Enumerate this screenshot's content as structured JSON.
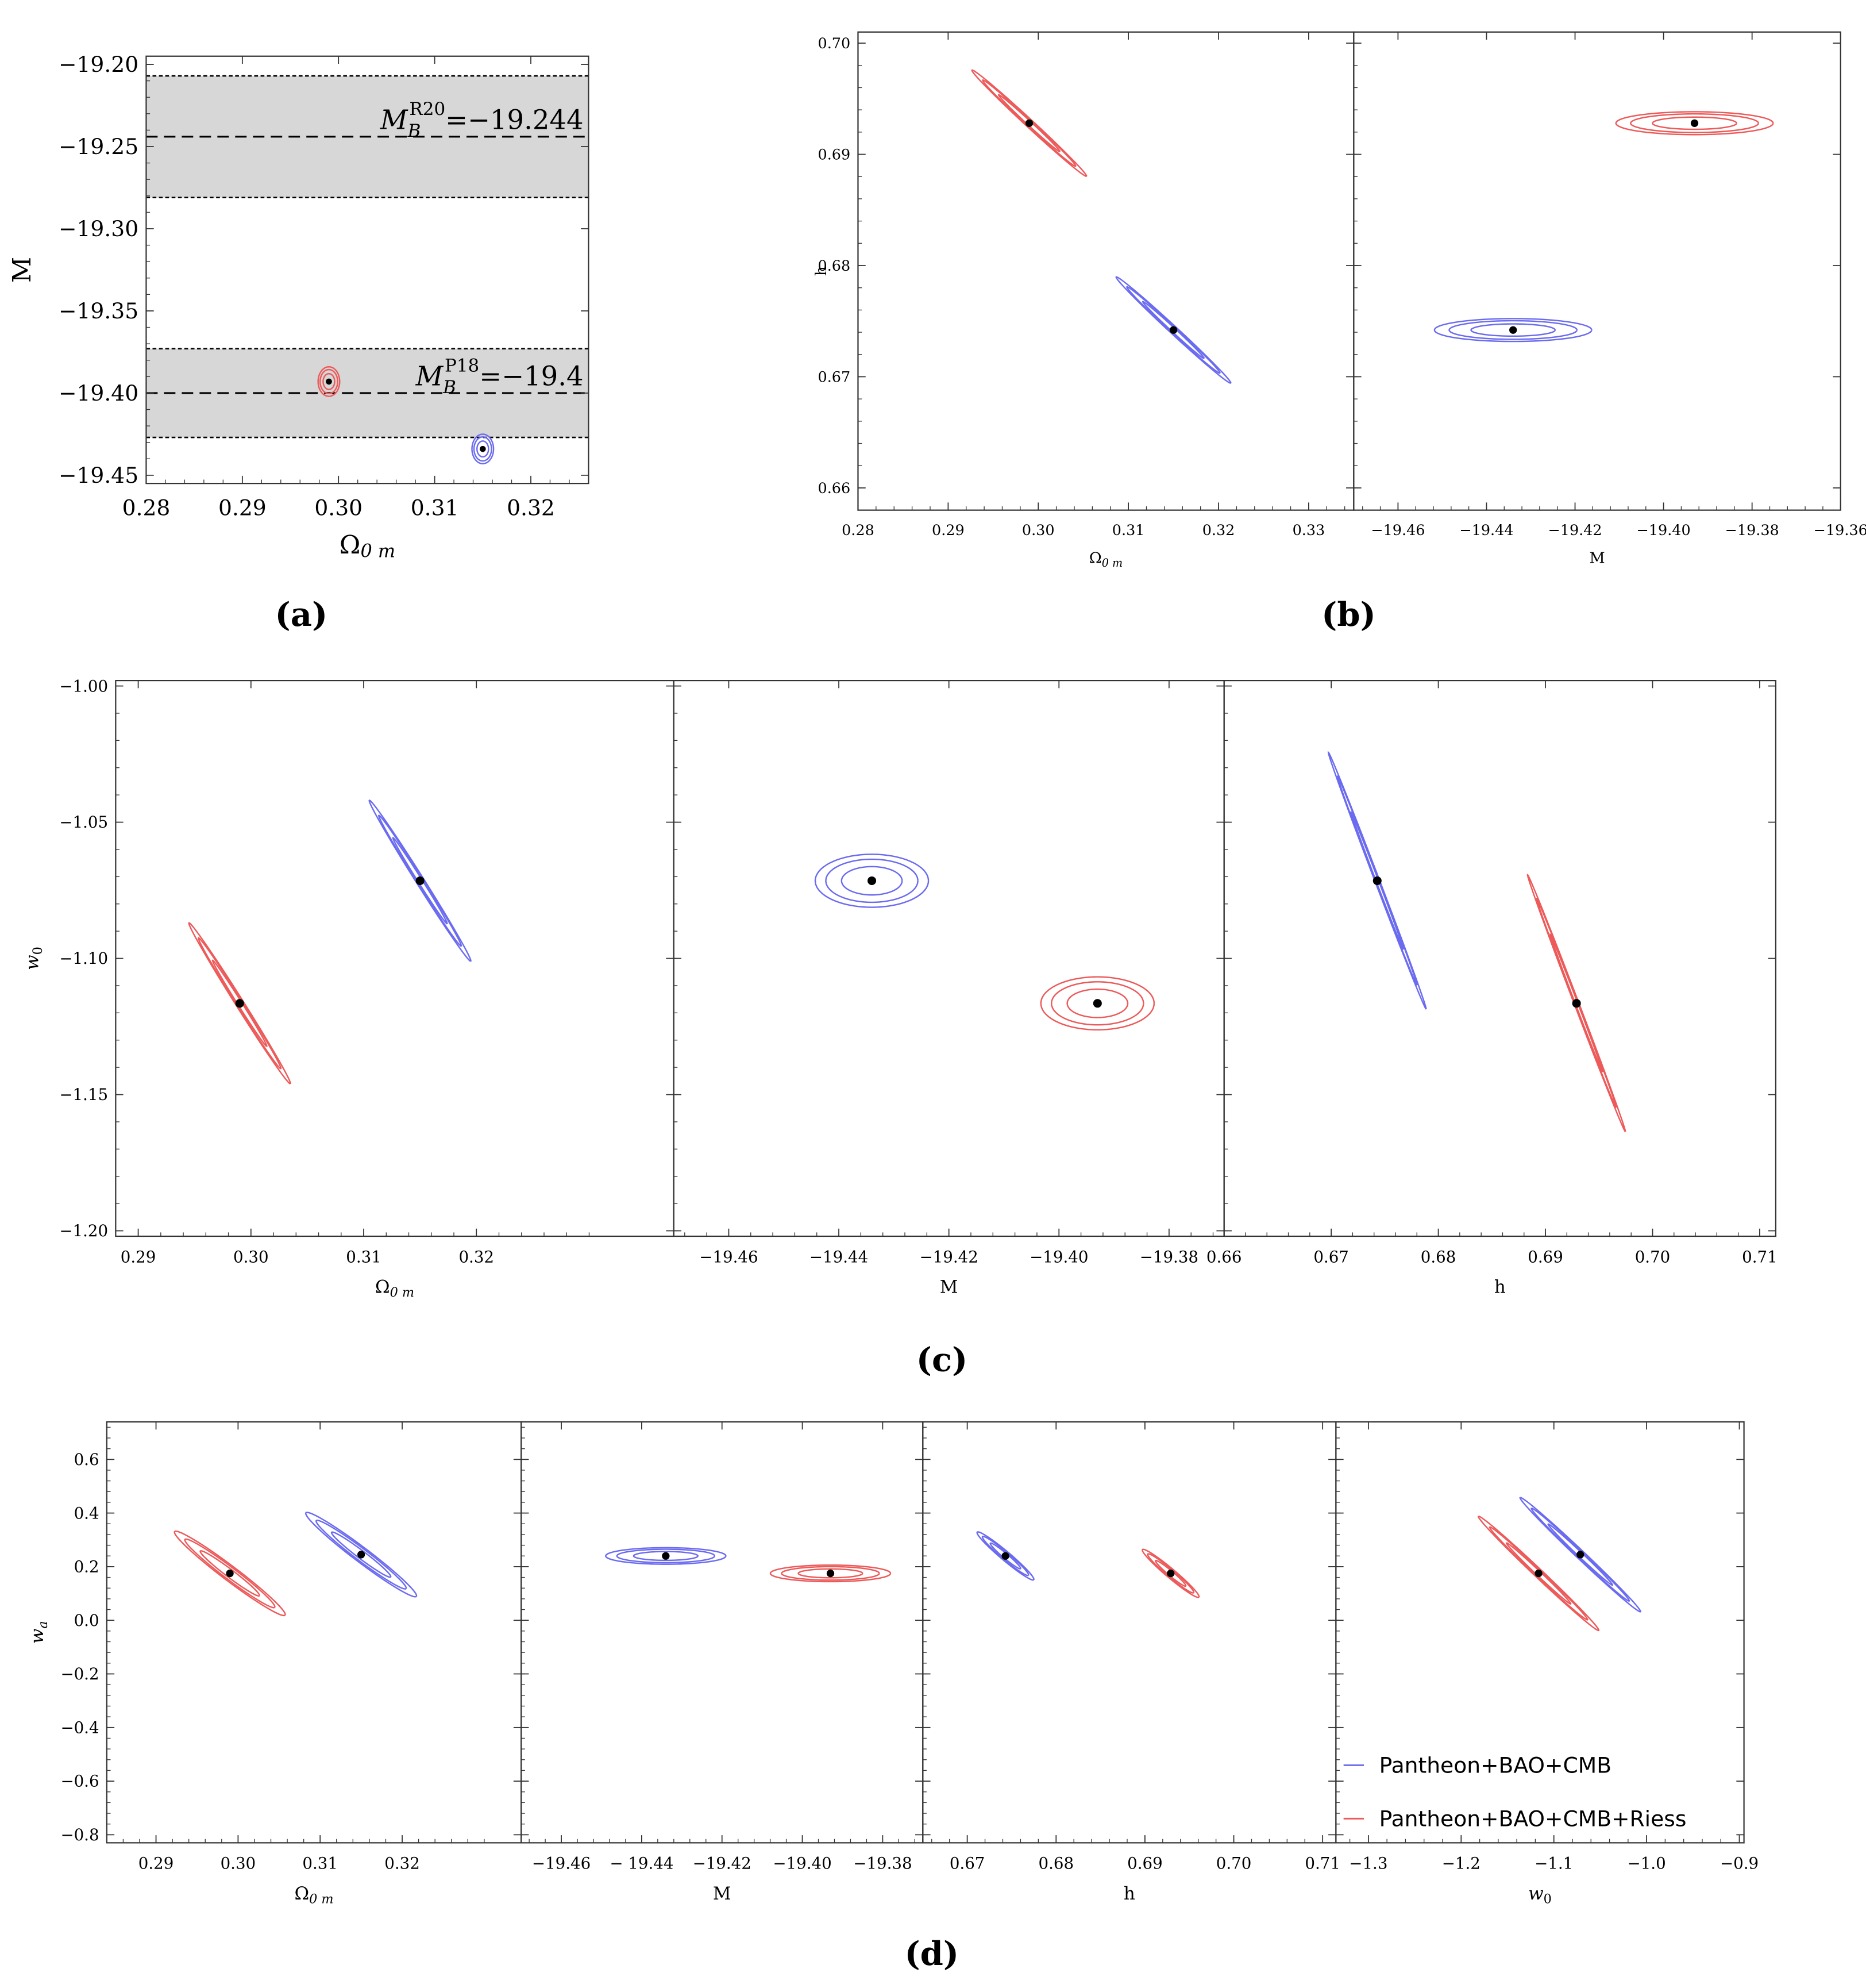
{
  "colors": {
    "blue": "#6b6bf0",
    "red": "#ec5a5a",
    "band_fill": "#d7d7d7",
    "point": "#000000"
  },
  "legend": {
    "blue_label": "Pantheon+BAO+CMB",
    "red_label": "Pantheon+BAO+CMB+Riess"
  },
  "chart_data": [
    {
      "id": "a",
      "panel_label": "(a)",
      "type": "scatter",
      "subplots": [
        {
          "xlabel": "Ω0 m",
          "ylabel": "M",
          "xlim": [
            0.28,
            0.326
          ],
          "ylim": [
            -19.455,
            -19.195
          ],
          "xticks": [
            0.28,
            0.29,
            0.3,
            0.31,
            0.32
          ],
          "xtick_labels": [
            "0.28",
            "0.29",
            "0.30",
            "0.31",
            "0.32"
          ],
          "yticks": [
            -19.2,
            -19.25,
            -19.3,
            -19.35,
            -19.4,
            -19.45
          ],
          "ytick_labels": [
            "−19.20",
            "−19.25",
            "−19.30",
            "−19.35",
            "−19.40",
            "−19.45"
          ],
          "bands": [
            {
              "name": "R20",
              "lo": -19.281,
              "mid": -19.244,
              "hi": -19.207,
              "label": "M_B^R20 = −19.244",
              "label_base": "M",
              "label_sub": "B",
              "label_sup": "R20",
              "label_value": "=−19.244"
            },
            {
              "name": "P18",
              "lo": -19.427,
              "mid": -19.4,
              "hi": -19.373,
              "label": "M_B^P18 = −19.4",
              "label_base": "M",
              "label_sub": "B",
              "label_sup": "P18",
              "label_value": "=−19.4"
            }
          ],
          "series": [
            {
              "name": "Pantheon+BAO+CMB+Riess",
              "color": "red",
              "center": [
                0.299,
                -19.393
              ],
              "axes": [
                [
                  0.0006,
                  0
                ],
                [
                  0,
                  0.0048
                ]
              ]
            },
            {
              "name": "Pantheon+BAO+CMB",
              "color": "blue",
              "center": [
                0.315,
                -19.434
              ],
              "axes": [
                [
                  0.0006,
                  0
                ],
                [
                  0,
                  0.0048
                ]
              ]
            }
          ]
        }
      ]
    },
    {
      "id": "b",
      "panel_label": "(b)",
      "type": "scatter",
      "ylabel": "h",
      "ylim": [
        0.658,
        0.701
      ],
      "yticks": [
        0.66,
        0.67,
        0.68,
        0.69,
        0.7
      ],
      "ytick_labels": [
        "0.66",
        "0.67",
        "0.68",
        "0.69",
        "0.70"
      ],
      "subplots": [
        {
          "xlabel": "Ω0 m",
          "xlim": [
            0.28,
            0.335
          ],
          "xticks": [
            0.28,
            0.29,
            0.3,
            0.31,
            0.32,
            0.33
          ],
          "xtick_labels": [
            "0.28",
            "0.29",
            "0.30",
            "0.31",
            "0.32",
            "0.33"
          ],
          "series": [
            {
              "name": "Pantheon+BAO+CMB+Riess",
              "color": "red",
              "center": [
                0.299,
                0.6928
              ],
              "axes": [
                [
                  0.0034,
                  -0.00255
                ],
                [
                  0.00012,
                  0.00016
                ]
              ]
            },
            {
              "name": "Pantheon+BAO+CMB",
              "color": "blue",
              "center": [
                0.315,
                0.6742
              ],
              "axes": [
                [
                  0.0034,
                  -0.00255
                ],
                [
                  0.00012,
                  0.00016
                ]
              ]
            }
          ]
        },
        {
          "xlabel": "M",
          "xlim": [
            -19.47,
            -19.36
          ],
          "xticks": [
            -19.46,
            -19.44,
            -19.42,
            -19.4,
            -19.38,
            -19.36
          ],
          "xtick_labels": [
            "−19.46",
            "−19.44",
            "−19.42",
            "−19.40",
            "−19.38",
            "−19.36"
          ],
          "series": [
            {
              "name": "Pantheon+BAO+CMB+Riess",
              "color": "red",
              "center": [
                -19.393,
                0.6928
              ],
              "axes": [
                [
                  0.0095,
                  0
                ],
                [
                  0,
                  0.00055
                ]
              ]
            },
            {
              "name": "Pantheon+BAO+CMB",
              "color": "blue",
              "center": [
                -19.434,
                0.6742
              ],
              "axes": [
                [
                  0.0095,
                  0
                ],
                [
                  0,
                  0.00055
                ]
              ]
            }
          ]
        }
      ]
    },
    {
      "id": "c",
      "panel_label": "(c)",
      "type": "scatter",
      "ylabel": "w0",
      "ylim": [
        -1.202,
        -0.998
      ],
      "yticks": [
        -1.0,
        -1.05,
        -1.1,
        -1.15,
        -1.2
      ],
      "ytick_labels": [
        "−1.00",
        "−1.05",
        "−1.10",
        "−1.15",
        "−1.20"
      ],
      "subplots": [
        {
          "xlabel": "Ω0 m",
          "xlim": [
            0.288,
            0.3375
          ],
          "xticks": [
            0.29,
            0.3,
            0.31,
            0.32
          ],
          "xtick_labels": [
            "0.29",
            "0.30",
            "0.31",
            "0.32"
          ],
          "series": [
            {
              "name": "Pantheon+BAO+CMB+Riess",
              "color": "red",
              "center": [
                0.299,
                -1.1165
              ],
              "axes": [
                [
                  0.0024,
                  -0.0158
                ],
                [
                  0.00022,
                  3.4e-05
                ]
              ]
            },
            {
              "name": "Pantheon+BAO+CMB",
              "color": "blue",
              "center": [
                0.315,
                -1.0715
              ],
              "axes": [
                [
                  0.0024,
                  -0.0158
                ],
                [
                  0.00022,
                  3.4e-05
                ]
              ]
            }
          ]
        },
        {
          "xlabel": "M",
          "xlim": [
            -19.47,
            -19.37
          ],
          "xticks": [
            -19.46,
            -19.44,
            -19.42,
            -19.4,
            -19.38
          ],
          "xtick_labels": [
            "−19.46",
            "−19.44",
            "−19.42",
            "−19.40",
            "−19.38"
          ],
          "series": [
            {
              "name": "Pantheon+BAO+CMB",
              "color": "blue",
              "center": [
                -19.434,
                -1.0715
              ],
              "axes": [
                [
                  0.0055,
                  0
                ],
                [
                  0,
                  0.0052
                ]
              ]
            },
            {
              "name": "Pantheon+BAO+CMB+Riess",
              "color": "red",
              "center": [
                -19.393,
                -1.1165
              ],
              "axes": [
                [
                  0.0055,
                  0
                ],
                [
                  0,
                  0.0052
                ]
              ]
            }
          ]
        },
        {
          "xlabel": "h",
          "xlim": [
            0.66,
            0.7115
          ],
          "xticks": [
            0.66,
            0.67,
            0.68,
            0.69,
            0.7,
            0.71
          ],
          "xtick_labels": [
            "0.66",
            "0.67",
            "0.68",
            "0.69",
            "0.70",
            "0.71"
          ],
          "series": [
            {
              "name": "Pantheon+BAO+CMB",
              "color": "blue",
              "center": [
                0.6743,
                -1.0715
              ],
              "axes": [
                [
                  0.00244,
                  -0.0252
                ],
                [
                  8.8e-05,
                  0.00036
                ]
              ]
            },
            {
              "name": "Pantheon+BAO+CMB+Riess",
              "color": "red",
              "center": [
                0.6929,
                -1.1165
              ],
              "axes": [
                [
                  0.00244,
                  -0.0252
                ],
                [
                  8.8e-05,
                  0.00036
                ]
              ]
            }
          ]
        }
      ]
    },
    {
      "id": "d",
      "panel_label": "(d)",
      "type": "scatter",
      "ylabel": "wa",
      "ylim": [
        -0.83,
        0.74
      ],
      "yticks": [
        0.6,
        0.4,
        0.2,
        0.0,
        -0.2,
        -0.4,
        -0.6,
        -0.8
      ],
      "ytick_labels": [
        "0.6",
        "0.4",
        "0.2",
        "0.0",
        "−0.2",
        "−0.4",
        "−0.6",
        "−0.8"
      ],
      "subplots": [
        {
          "xlabel": "Ω0 m",
          "xlim": [
            0.284,
            0.3345
          ],
          "xticks": [
            0.29,
            0.3,
            0.31,
            0.32
          ],
          "xtick_labels": [
            "0.29",
            "0.30",
            "0.31",
            "0.32"
          ],
          "series": [
            {
              "name": "Pantheon+BAO+CMB+Riess",
              "color": "red",
              "center": [
                0.299,
                0.175
              ],
              "axes": [
                [
                  0.0036,
                  -0.0833
                ],
                [
                  0.00028,
                  0.012
                ]
              ]
            },
            {
              "name": "Pantheon+BAO+CMB",
              "color": "blue",
              "center": [
                0.315,
                0.245
              ],
              "axes": [
                [
                  0.0036,
                  -0.0833
                ],
                [
                  0.00028,
                  0.012
                ]
              ]
            }
          ]
        },
        {
          "xlabel": "M",
          "xlim": [
            -19.47,
            -19.37
          ],
          "xticks": [
            -19.46,
            -19.44,
            -19.42,
            -19.4,
            -19.38
          ],
          "xtick_labels": [
            "−19.46",
            "− 19.44",
            "−19.42",
            "−19.40",
            "−19.38"
          ],
          "series": [
            {
              "name": "Pantheon+BAO+CMB",
              "color": "blue",
              "center": [
                -19.434,
                0.24
              ],
              "axes": [
                [
                  0.008,
                  0
                ],
                [
                  0,
                  0.0165
                ]
              ]
            },
            {
              "name": "Pantheon+BAO+CMB+Riess",
              "color": "red",
              "center": [
                -19.393,
                0.175
              ],
              "axes": [
                [
                  0.008,
                  0
                ],
                [
                  0,
                  0.0165
                ]
              ]
            }
          ]
        },
        {
          "xlabel": "h",
          "xlim": [
            0.665,
            0.7115
          ],
          "xticks": [
            0.67,
            0.68,
            0.69,
            0.7,
            0.71
          ],
          "xtick_labels": [
            "0.67",
            "0.68",
            "0.69",
            "0.70",
            "0.71"
          ],
          "series": [
            {
              "name": "Pantheon+BAO+CMB",
              "color": "blue",
              "center": [
                0.6743,
                0.24
              ],
              "axes": [
                [
                  0.0017,
                  -0.0475
                ],
                [
                  0.00018,
                  0.0067
                ]
              ]
            },
            {
              "name": "Pantheon+BAO+CMB+Riess",
              "color": "red",
              "center": [
                0.6929,
                0.175
              ],
              "axes": [
                [
                  0.0017,
                  -0.0475
                ],
                [
                  0.00018,
                  0.0067
                ]
              ]
            }
          ]
        },
        {
          "xlabel": "w0",
          "xlim": [
            -1.335,
            -0.895
          ],
          "xticks": [
            -1.3,
            -1.2,
            -1.1,
            -1.0,
            -0.9
          ],
          "xtick_labels": [
            "−1.3",
            "−1.2",
            "−1.1",
            "−1.0",
            "−0.9"
          ],
          "series": [
            {
              "name": "Pantheon+BAO+CMB",
              "color": "blue",
              "center": [
                -1.0715,
                0.245
              ],
              "axes": [
                [
                  -0.0346,
                  0.114
                ],
                [
                  0.0032,
                  0.00098
                ]
              ]
            },
            {
              "name": "Pantheon+BAO+CMB+Riess",
              "color": "red",
              "center": [
                -1.1165,
                0.175
              ],
              "axes": [
                [
                  -0.0346,
                  0.114
                ],
                [
                  0.0032,
                  0.00098
                ]
              ]
            }
          ]
        }
      ]
    }
  ]
}
